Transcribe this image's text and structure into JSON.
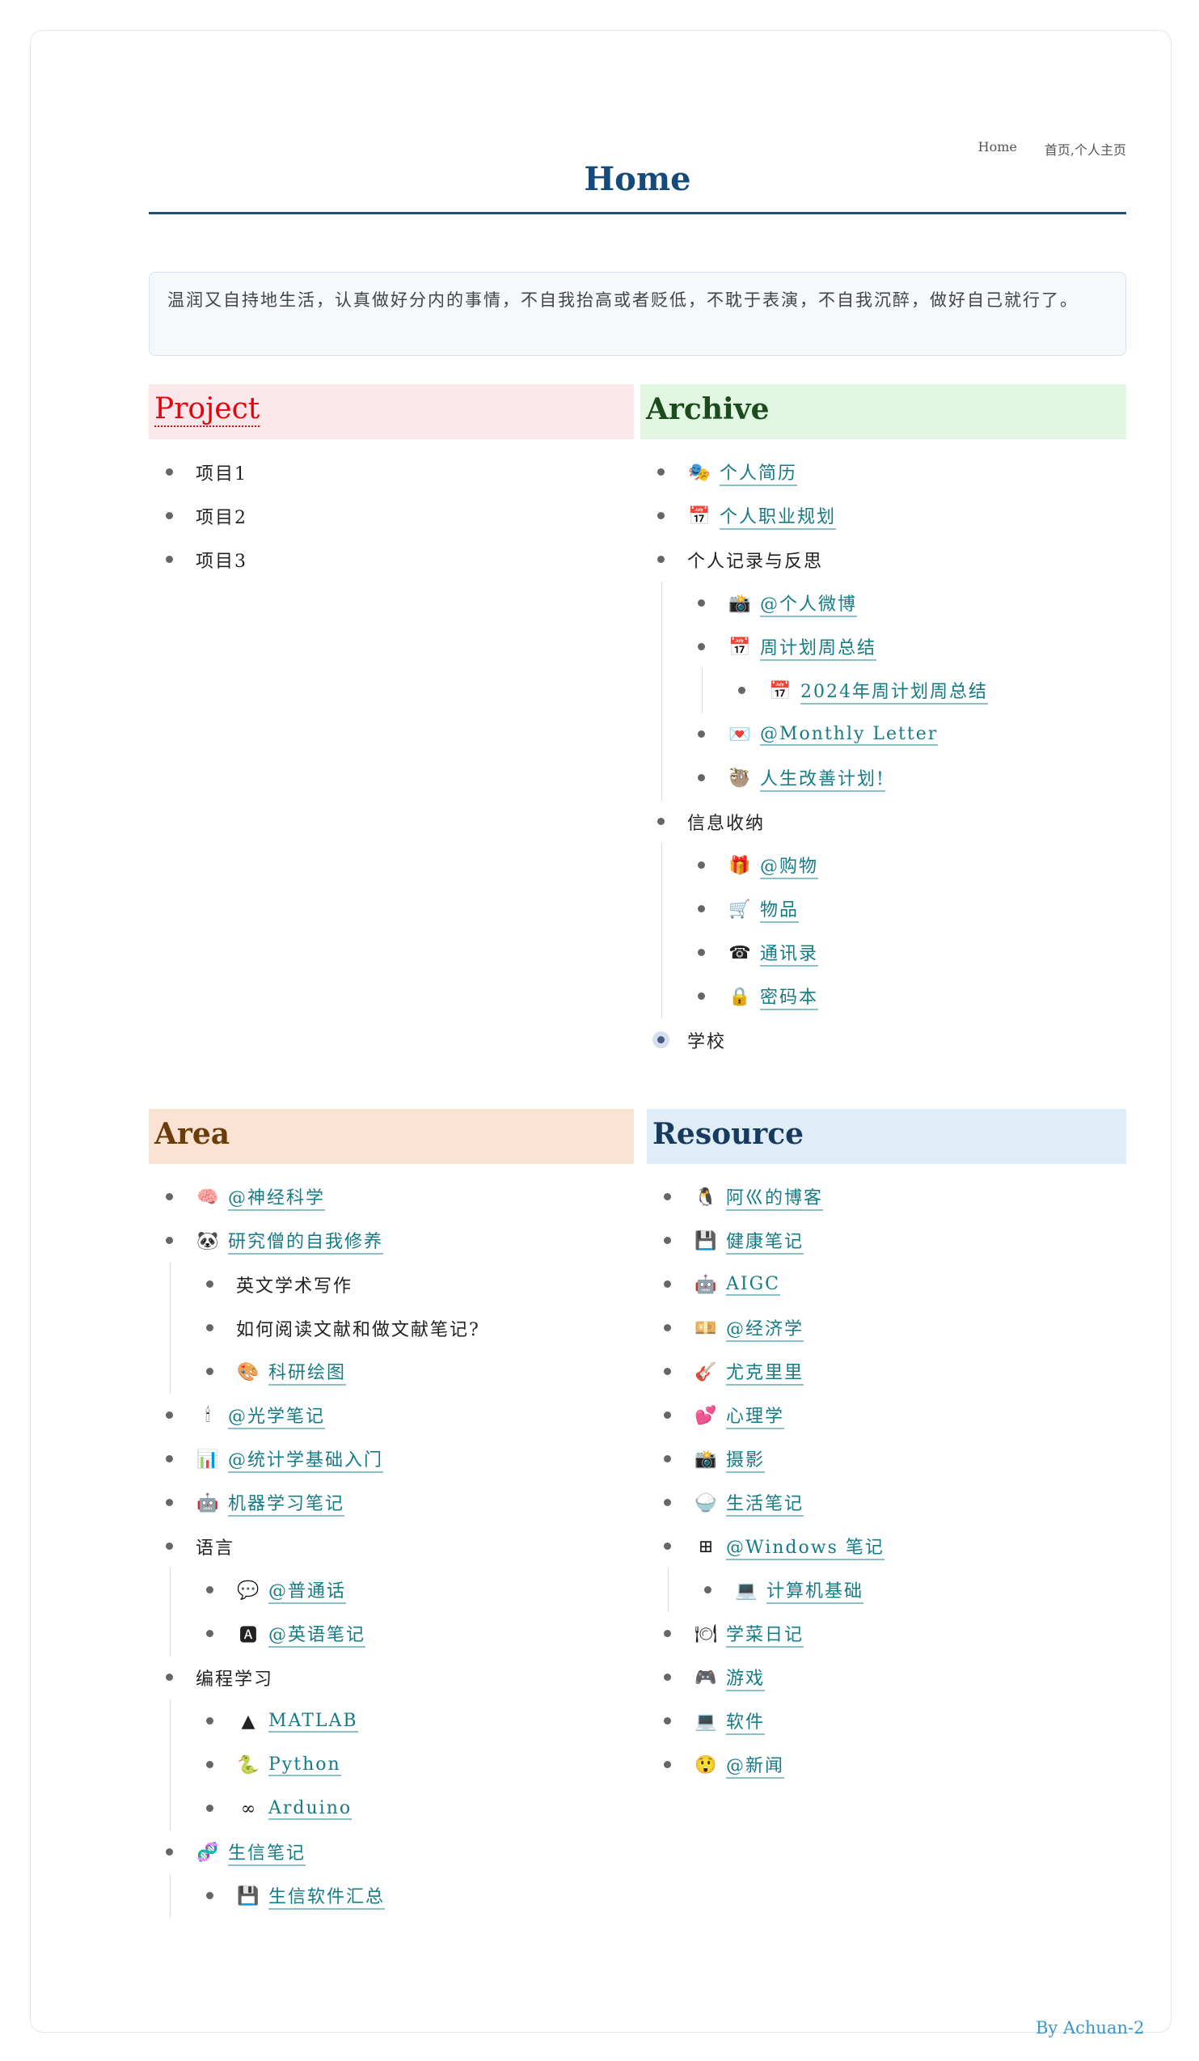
{
  "breadcrumbs": [
    "Home",
    "首页,个人主页"
  ],
  "title": "Home",
  "quote": "温润又自持地生活，认真做好分内的事情，不自我抬高或者贬低，不耽于表演，不自我沉醉，做好自己就行了。",
  "sections": [
    {
      "key": "project",
      "title": "Project",
      "items": [
        {
          "label": "项目1"
        },
        {
          "label": "项目2"
        },
        {
          "label": "项目3"
        }
      ]
    },
    {
      "key": "archive",
      "title": "Archive",
      "items": [
        {
          "label": "个人简历",
          "icon": "avatar-icon",
          "glyph": "🎭",
          "link": true
        },
        {
          "label": "个人职业规划",
          "icon": "calendar-icon",
          "glyph": "📅",
          "link": true
        },
        {
          "label": "个人记录与反思",
          "children": [
            {
              "label": "@个人微博",
              "icon": "camera-icon",
              "glyph": "📸",
              "link": true
            },
            {
              "label": "周计划周总结",
              "icon": "calendar-icon",
              "glyph": "📅",
              "link": true,
              "children": [
                {
                  "label": "2024年周计划周总结",
                  "icon": "calendar-icon",
                  "glyph": "📅",
                  "link": true
                }
              ]
            },
            {
              "label": "@Monthly Letter",
              "icon": "love-letter-icon",
              "glyph": "💌",
              "link": true
            },
            {
              "label": "人生改善计划! ",
              "icon": "sloth-icon",
              "glyph": "🦥",
              "link": true
            }
          ]
        },
        {
          "label": "信息收纳",
          "children": [
            {
              "label": "@购物",
              "icon": "gift-icon",
              "glyph": "🎁",
              "link": true
            },
            {
              "label": "物品",
              "icon": "cart-icon",
              "glyph": "🛒",
              "link": true
            },
            {
              "label": "通讯录",
              "icon": "telephone-icon",
              "glyph": "☎",
              "link": true
            },
            {
              "label": "密码本",
              "icon": "lock-icon",
              "glyph": "🔒",
              "link": true
            }
          ]
        },
        {
          "label": "学校",
          "collapsed": true
        }
      ]
    },
    {
      "key": "area",
      "title": "Area",
      "items": [
        {
          "label": "@神经科学",
          "icon": "brain-icon",
          "glyph": "🧠",
          "link": true
        },
        {
          "label": "研究僧的自我修养",
          "icon": "panda-icon",
          "glyph": "🐼",
          "link": true,
          "children": [
            {
              "label": "英文学术写作"
            },
            {
              "label": "如何阅读文献和做文献笔记?"
            },
            {
              "label": "科研绘图",
              "icon": "palette-icon",
              "glyph": "🎨",
              "link": true
            }
          ]
        },
        {
          "label": "@光学笔记",
          "icon": "candle-icon",
          "glyph": "🕯",
          "link": true
        },
        {
          "label": "@统计学基础入门",
          "icon": "bar-chart-icon",
          "glyph": "📊",
          "link": true
        },
        {
          "label": "机器学习笔记",
          "icon": "robot-icon",
          "glyph": "🤖",
          "link": true
        },
        {
          "label": "语言",
          "children": [
            {
              "label": "@普通话",
              "icon": "speech-bubble-icon",
              "glyph": "💬",
              "link": true
            },
            {
              "label": "@英语笔记",
              "icon": "letter-a-icon",
              "glyph": "🅰",
              "link": true
            }
          ]
        },
        {
          "label": "编程学习",
          "children": [
            {
              "label": "MATLAB",
              "icon": "matlab-icon",
              "glyph": "▲",
              "link": true
            },
            {
              "label": "Python",
              "icon": "python-icon",
              "glyph": "🐍",
              "link": true
            },
            {
              "label": "Arduino",
              "icon": "arduino-icon",
              "glyph": "∞",
              "link": true
            }
          ]
        },
        {
          "label": "生信笔记",
          "icon": "dna-icon",
          "glyph": "🧬",
          "link": true,
          "children": [
            {
              "label": "生信软件汇总",
              "icon": "floppy-disk-icon",
              "glyph": "💾",
              "link": true
            }
          ]
        }
      ]
    },
    {
      "key": "resource",
      "title": "Resource",
      "items": [
        {
          "label": "阿巛的博客",
          "icon": "penguin-icon",
          "glyph": "🐧",
          "link": true
        },
        {
          "label": "健康笔记",
          "icon": "floppy-disk-icon",
          "glyph": "💾",
          "link": true
        },
        {
          "label": "AIGC",
          "icon": "robot-icon",
          "glyph": "🤖",
          "link": true
        },
        {
          "label": "@经济学",
          "icon": "money-icon",
          "glyph": "💴",
          "link": true
        },
        {
          "label": "尤克里里",
          "icon": "guitar-icon",
          "glyph": "🎸",
          "link": true
        },
        {
          "label": "心理学",
          "icon": "hearts-icon",
          "glyph": "💕",
          "link": true
        },
        {
          "label": "摄影",
          "icon": "camera-icon",
          "glyph": "📸",
          "link": true
        },
        {
          "label": "生活笔记",
          "icon": "rice-bowl-icon",
          "glyph": "🍚",
          "link": true
        },
        {
          "label": "@Windows 笔记",
          "icon": "windows-icon",
          "glyph": "⊞",
          "link": true,
          "children": [
            {
              "label": "计算机基础",
              "icon": "laptop-icon",
              "glyph": "💻",
              "link": true
            }
          ]
        },
        {
          "label": "学菜日记",
          "icon": "plate-icon",
          "glyph": "🍽",
          "link": true
        },
        {
          "label": "游戏",
          "icon": "gamepad-icon",
          "glyph": "🎮",
          "link": true
        },
        {
          "label": "软件",
          "icon": "laptop-icon",
          "glyph": "💻",
          "link": true
        },
        {
          "label": "@新闻",
          "icon": "face-icon",
          "glyph": "😲",
          "link": true
        }
      ]
    }
  ],
  "footer": "By Achuan-2"
}
